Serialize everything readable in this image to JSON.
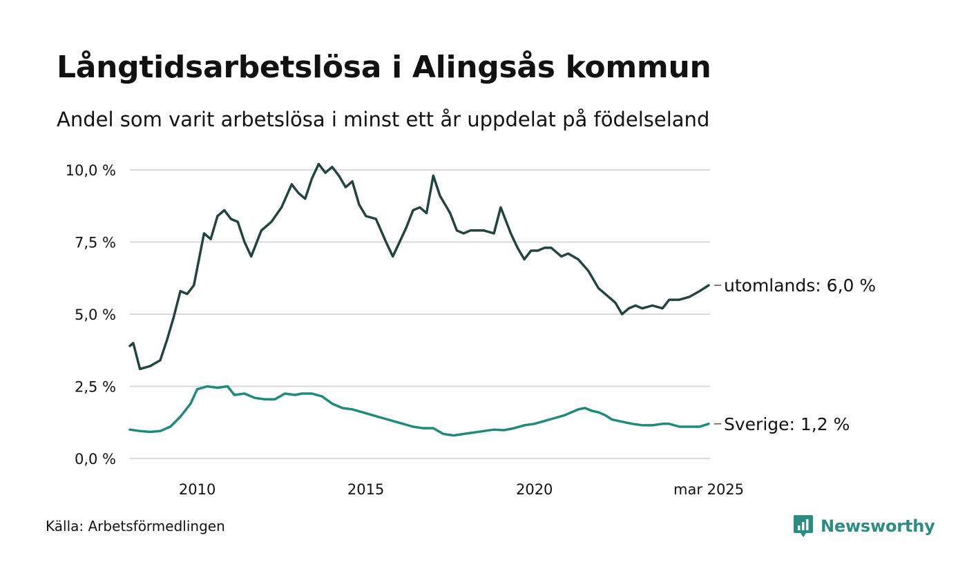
{
  "header": {
    "title": "Långtidsarbetslösa i Alingsås kommun",
    "subtitle": "Andel som varit arbetslösa i minst ett år uppdelat på födelseland"
  },
  "footer": {
    "source": "Källa: Arbetsförmedlingen",
    "brand": "Newsworthy",
    "brand_icon": "bar-chart-speech-icon"
  },
  "colors": {
    "utomlands": "#22443f",
    "sverige": "#1d8a7b",
    "grid": "#d9d9d9",
    "brand": "#2a8c82"
  },
  "chart_data": {
    "type": "line",
    "title": "Långtidsarbetslösa i Alingsås kommun",
    "subtitle": "Andel som varit arbetslösa i minst ett år uppdelat på födelseland",
    "ylim": [
      0,
      10
    ],
    "y_ticks": [
      0,
      2.5,
      5,
      7.5,
      10
    ],
    "y_tick_labels": [
      "0,0 %",
      "2,5 %",
      "5,0 %",
      "7,5 %",
      "10,0 %"
    ],
    "xlim": [
      2008.0,
      2025.21
    ],
    "x_ticks": [
      2010,
      2015,
      2020,
      2025.17
    ],
    "x_tick_labels": [
      "2010",
      "2015",
      "2020",
      "mar 2025"
    ],
    "grid": true,
    "series": [
      {
        "name": "utomlands",
        "end_label": "utomlands: 6,0 %",
        "x": [
          2008.0,
          2008.1,
          2008.3,
          2008.6,
          2008.9,
          2009.1,
          2009.3,
          2009.5,
          2009.7,
          2009.9,
          2010.2,
          2010.4,
          2010.6,
          2010.8,
          2011.0,
          2011.2,
          2011.4,
          2011.6,
          2011.9,
          2012.2,
          2012.5,
          2012.8,
          2013.0,
          2013.2,
          2013.4,
          2013.6,
          2013.8,
          2014.0,
          2014.2,
          2014.4,
          2014.6,
          2014.8,
          2015.0,
          2015.3,
          2015.6,
          2015.8,
          2016.0,
          2016.2,
          2016.4,
          2016.6,
          2016.8,
          2017.0,
          2017.2,
          2017.4,
          2017.5,
          2017.7,
          2017.9,
          2018.1,
          2018.3,
          2018.5,
          2018.8,
          2019.0,
          2019.3,
          2019.5,
          2019.7,
          2019.9,
          2020.1,
          2020.3,
          2020.5,
          2020.8,
          2021.0,
          2021.3,
          2021.6,
          2021.9,
          2022.1,
          2022.4,
          2022.6,
          2022.8,
          2023.0,
          2023.2,
          2023.5,
          2023.8,
          2024.0,
          2024.3,
          2024.6,
          2024.9,
          2025.17
        ],
        "values": [
          3.9,
          4.0,
          3.1,
          3.2,
          3.4,
          4.1,
          4.9,
          5.8,
          5.7,
          6.0,
          7.8,
          7.6,
          8.4,
          8.6,
          8.3,
          8.2,
          7.5,
          7.0,
          7.9,
          8.2,
          8.7,
          9.5,
          9.2,
          9.0,
          9.7,
          10.2,
          9.9,
          10.1,
          9.8,
          9.4,
          9.6,
          8.8,
          8.4,
          8.3,
          7.5,
          7.0,
          7.5,
          8.0,
          8.6,
          8.7,
          8.5,
          9.8,
          9.1,
          8.7,
          8.5,
          7.9,
          7.8,
          7.9,
          7.9,
          7.9,
          7.8,
          8.7,
          7.8,
          7.3,
          6.9,
          7.2,
          7.2,
          7.3,
          7.3,
          7.0,
          7.1,
          6.9,
          6.5,
          5.9,
          5.7,
          5.4,
          5.0,
          5.2,
          5.3,
          5.2,
          5.3,
          5.2,
          5.5,
          5.5,
          5.6,
          5.8,
          6.0
        ]
      },
      {
        "name": "Sverige",
        "end_label": "Sverige: 1,2 %",
        "x": [
          2008.0,
          2008.3,
          2008.6,
          2008.9,
          2009.2,
          2009.5,
          2009.8,
          2010.0,
          2010.3,
          2010.6,
          2010.9,
          2011.1,
          2011.4,
          2011.7,
          2012.0,
          2012.3,
          2012.6,
          2012.9,
          2013.1,
          2013.4,
          2013.7,
          2014.0,
          2014.3,
          2014.6,
          2014.9,
          2015.2,
          2015.5,
          2015.8,
          2016.1,
          2016.4,
          2016.7,
          2017.0,
          2017.3,
          2017.6,
          2017.9,
          2018.2,
          2018.5,
          2018.8,
          2019.1,
          2019.4,
          2019.7,
          2020.0,
          2020.3,
          2020.6,
          2020.9,
          2021.1,
          2021.3,
          2021.5,
          2021.7,
          2021.9,
          2022.1,
          2022.3,
          2022.5,
          2022.7,
          2022.9,
          2023.2,
          2023.5,
          2023.8,
          2024.0,
          2024.3,
          2024.6,
          2024.9,
          2025.17
        ],
        "values": [
          1.0,
          0.95,
          0.92,
          0.95,
          1.1,
          1.45,
          1.9,
          2.4,
          2.5,
          2.45,
          2.5,
          2.2,
          2.25,
          2.1,
          2.05,
          2.05,
          2.25,
          2.2,
          2.25,
          2.25,
          2.15,
          1.9,
          1.75,
          1.7,
          1.6,
          1.5,
          1.4,
          1.3,
          1.2,
          1.1,
          1.05,
          1.05,
          0.85,
          0.8,
          0.85,
          0.9,
          0.95,
          1.0,
          0.98,
          1.05,
          1.15,
          1.2,
          1.3,
          1.4,
          1.5,
          1.6,
          1.7,
          1.75,
          1.65,
          1.6,
          1.5,
          1.35,
          1.3,
          1.25,
          1.2,
          1.15,
          1.15,
          1.2,
          1.2,
          1.1,
          1.1,
          1.1,
          1.2
        ]
      }
    ]
  }
}
